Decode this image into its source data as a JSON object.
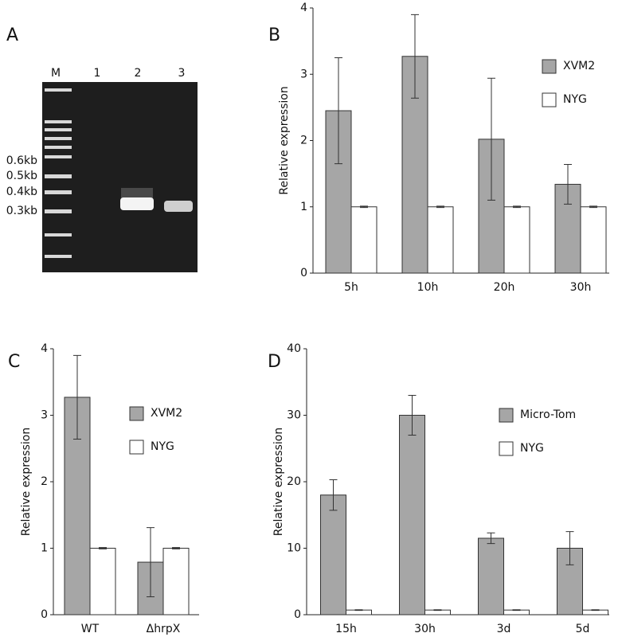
{
  "gel": {
    "panel_label": "A",
    "lane_labels": [
      "M",
      "1",
      "2",
      "3"
    ],
    "size_labels": [
      "0.6kb",
      "0.5kb",
      "0.4kb",
      "0.3kb"
    ]
  },
  "chart_data": [
    {
      "type": "bar",
      "panel_label": "B",
      "ylabel": "Relative expression",
      "categories": [
        "5h",
        "10h",
        "20h",
        "30h"
      ],
      "series": [
        {
          "name": "XVM2",
          "color": "#a6a6a6",
          "values": [
            2.45,
            3.27,
            2.02,
            1.34
          ],
          "errors": [
            0.8,
            0.63,
            0.92,
            0.3
          ]
        },
        {
          "name": "NYG",
          "color": "#ffffff",
          "values": [
            1,
            1,
            1,
            1
          ],
          "errors": [
            0.01,
            0.01,
            0.01,
            0.01
          ]
        }
      ],
      "ylim": [
        0,
        4
      ],
      "yticks": [
        0,
        1,
        2,
        3,
        4
      ]
    },
    {
      "type": "bar",
      "panel_label": "C",
      "ylabel": "Relative expression",
      "categories": [
        "WT",
        "ΔhrpX"
      ],
      "series": [
        {
          "name": "XVM2",
          "color": "#a6a6a6",
          "values": [
            3.27,
            0.79
          ],
          "errors": [
            0.63,
            0.52
          ]
        },
        {
          "name": "NYG",
          "color": "#ffffff",
          "values": [
            1,
            1
          ],
          "errors": [
            0.01,
            0.01
          ]
        }
      ],
      "ylim": [
        0,
        4
      ],
      "yticks": [
        0,
        1,
        2,
        3,
        4
      ]
    },
    {
      "type": "bar",
      "panel_label": "D",
      "ylabel": "Relative expression",
      "categories": [
        "15h",
        "30h",
        "3d",
        "5d"
      ],
      "series": [
        {
          "name": "Micro-Tom",
          "color": "#a6a6a6",
          "values": [
            18,
            30,
            11.5,
            10
          ],
          "errors": [
            2.3,
            3,
            0.8,
            2.5
          ]
        },
        {
          "name": "NYG",
          "color": "#ffffff",
          "values": [
            0.7,
            0.7,
            0.7,
            0.7
          ],
          "errors": [
            0.05,
            0.05,
            0.05,
            0.05
          ]
        }
      ],
      "ylim": [
        0,
        40
      ],
      "yticks": [
        0,
        10,
        20,
        30,
        40
      ]
    }
  ]
}
